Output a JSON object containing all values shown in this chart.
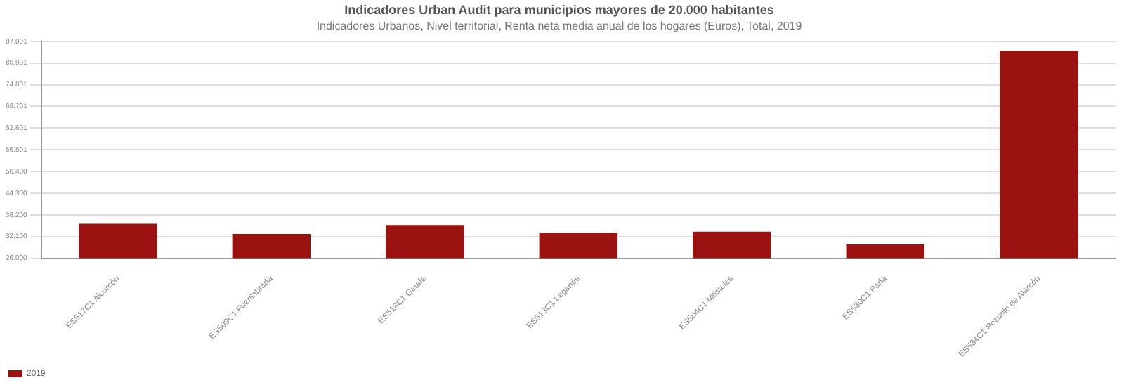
{
  "chart_data": {
    "type": "bar",
    "title": "Indicadores Urban Audit para municipios mayores de 20.000 habitantes",
    "subtitle": "Indicadores Urbanos, Nivel territorial, Renta neta media anual de los hogares (Euros), Total, 2019",
    "categories": [
      "ES517C1 Alcorcón",
      "ES509C1 Fuenlabrada",
      "ES518C1 Getafe",
      "ES513C1 Leganés",
      "ES504C1 Móstoles",
      "ES530C1 Parla",
      "ES534C1 Pozuelo de Alarcón"
    ],
    "series": [
      {
        "name": "2019",
        "color": "#9b1311",
        "values": [
          35700,
          32850,
          35350,
          33230,
          33480,
          29850,
          84340
        ]
      }
    ],
    "ylim": [
      26000,
      87001
    ],
    "yticks": [
      {
        "value": 26000,
        "label": "26.000"
      },
      {
        "value": 32100,
        "label": "32.100"
      },
      {
        "value": 38200,
        "label": "38.200"
      },
      {
        "value": 44300,
        "label": "44.300"
      },
      {
        "value": 50400,
        "label": "50.400"
      },
      {
        "value": 56501,
        "label": "56.501"
      },
      {
        "value": 62601,
        "label": "62.601"
      },
      {
        "value": 68701,
        "label": "68.701"
      },
      {
        "value": 74801,
        "label": "74.801"
      },
      {
        "value": 80901,
        "label": "80.901"
      },
      {
        "value": 87001,
        "label": "87.001"
      }
    ],
    "grid": "y",
    "legend": "bottom left"
  }
}
